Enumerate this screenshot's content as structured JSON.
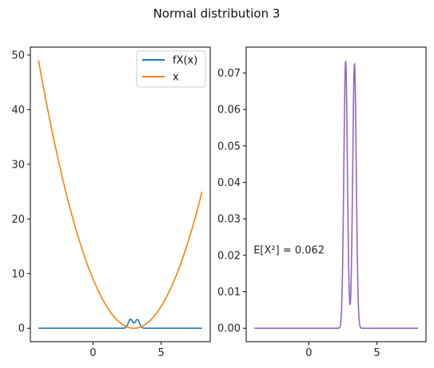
{
  "figure": {
    "suptitle": "Normal distribution 3"
  },
  "chart_data": [
    {
      "type": "line",
      "x_range": [
        -4,
        8
      ],
      "xlim": [
        -4.6,
        8.6
      ],
      "ylim": [
        -2.45,
        51.45
      ],
      "xticks": [
        0,
        5
      ],
      "yticks": [
        0,
        10,
        20,
        30,
        40,
        50
      ],
      "ytick_labels": [
        "0",
        "10",
        "20",
        "30",
        "40",
        "50"
      ],
      "legend": {
        "placement": "top-right",
        "entries": [
          "fX(x)",
          "x"
        ]
      },
      "series": [
        {
          "name": "fX(x)",
          "color": "#1f77b4",
          "function": "bimodal_density",
          "peaks": [
            {
              "x": 2.75,
              "y": 1.65
            },
            {
              "x": 3.25,
              "y": 1.6
            }
          ],
          "baseline": 0
        },
        {
          "name": "x",
          "color": "#ff7f0e",
          "function": "(x-3)^2",
          "points": [
            [
              -4,
              49
            ],
            [
              0,
              9
            ],
            [
              3,
              0
            ],
            [
              5,
              4
            ],
            [
              8,
              25
            ]
          ]
        }
      ]
    },
    {
      "type": "line",
      "x_range": [
        -4,
        8
      ],
      "xlim": [
        -4.6,
        8.6
      ],
      "ylim": [
        -0.00368,
        0.0771
      ],
      "xticks": [
        0,
        5
      ],
      "yticks": [
        0.0,
        0.01,
        0.02,
        0.03,
        0.04,
        0.05,
        0.06,
        0.07
      ],
      "ytick_labels": [
        "0.00",
        "0.01",
        "0.02",
        "0.03",
        "0.04",
        "0.05",
        "0.06",
        "0.07"
      ],
      "annotation": {
        "text": "E[X²] = 0.062",
        "x": -4,
        "y": 0.0205
      },
      "series": [
        {
          "color": "#9467bd",
          "function": "bimodal_density",
          "peaks": [
            {
              "x": 2.7,
              "y": 0.0733
            },
            {
              "x": 3.35,
              "y": 0.0727
            }
          ],
          "dip": {
            "x": 3.0,
            "y": 0.0025
          }
        }
      ]
    }
  ]
}
